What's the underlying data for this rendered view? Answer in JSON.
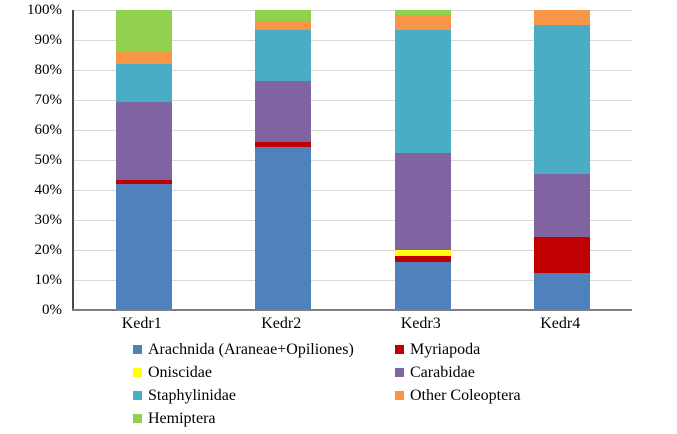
{
  "chart_data": {
    "type": "bar",
    "subtype": "stacked-100-percent",
    "title": "",
    "xlabel": "",
    "ylabel": "",
    "grid": true,
    "categories": [
      "Kedr1",
      "Kedr2",
      "Kedr3",
      "Kedr4"
    ],
    "series": [
      {
        "name": "Arachnida (Araneae+Opiliones)",
        "color": "#4F81BD",
        "values": [
          42,
          54.5,
          16,
          12.5
        ]
      },
      {
        "name": "Myriapoda",
        "color": "#C00000",
        "values": [
          1.5,
          1.5,
          2,
          12
        ]
      },
      {
        "name": "Oniscidae",
        "color": "#FFFF00",
        "values": [
          0,
          0,
          2,
          0
        ]
      },
      {
        "name": "Carabidae",
        "color": "#8064A2",
        "values": [
          26,
          20.5,
          32.5,
          21
        ]
      },
      {
        "name": "Staphylinidae",
        "color": "#4BACC6",
        "values": [
          12.5,
          17,
          41,
          49.5
        ]
      },
      {
        "name": "Other Coleoptera",
        "color": "#F79646",
        "values": [
          4,
          3,
          5,
          5
        ]
      },
      {
        "name": "Hemiptera",
        "color": "#92D050",
        "values": [
          14,
          3.5,
          1.5,
          0
        ]
      }
    ],
    "y_axis": {
      "min": 0,
      "max": 100,
      "tick_step": 10,
      "ticks": [
        "0%",
        "10%",
        "20%",
        "30%",
        "40%",
        "50%",
        "60%",
        "70%",
        "80%",
        "90%",
        "100%"
      ]
    },
    "legend": {
      "position": "bottom",
      "columns": 2,
      "row_major_order": [
        "Arachnida (Araneae+Opiliones)",
        "Myriapoda",
        "Oniscidae",
        "Carabidae",
        "Staphylinidae",
        "Other Coleoptera",
        "Hemiptera"
      ]
    },
    "colors": {
      "gridline": "#D9D9D9",
      "y_axis_line": "#4A4A4A",
      "x_axis_line": "#7F7F7F",
      "background": "#FFFFFF"
    }
  }
}
